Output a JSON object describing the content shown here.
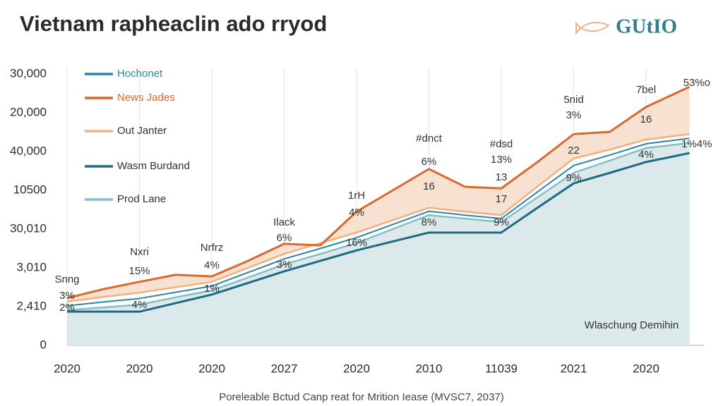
{
  "chart_data": {
    "type": "line",
    "title": "Vietnam rapheaclin ado rryod",
    "logo": "GUtIO",
    "footer": "Poreleable Bctud Canp reat for Mrition Iease (MVSC7, 2037)",
    "x": [
      0,
      0.5,
      1,
      1.5,
      2,
      2.5,
      3,
      3.5,
      4,
      4.5,
      5,
      5.5,
      6,
      6.5,
      7,
      7.5,
      8,
      8.6
    ],
    "xlim": [
      0,
      8.8
    ],
    "xticks": [
      {
        "value": 0,
        "label": "2020"
      },
      {
        "value": 1,
        "label": "2020"
      },
      {
        "value": 2,
        "label": "2020"
      },
      {
        "value": 3,
        "label": "2027"
      },
      {
        "value": 4,
        "label": "2020"
      },
      {
        "value": 5,
        "label": "2010"
      },
      {
        "value": 6,
        "label": "11039"
      },
      {
        "value": 7,
        "label": "2021"
      },
      {
        "value": 8,
        "label": "2020"
      }
    ],
    "ylim": [
      0,
      7
    ],
    "yticks": [
      0,
      {
        "value": 1,
        "label": "2,410"
      },
      {
        "value": 2,
        "label": "3,010"
      },
      {
        "value": 3,
        "label": "30,010"
      },
      {
        "value": 4,
        "label": "10500"
      },
      {
        "value": 5,
        "label": "40,000"
      },
      {
        "value": 6,
        "label": "20,000"
      },
      {
        "value": 7,
        "label": "30,000"
      }
    ],
    "grid": true,
    "legend": "upper left",
    "series": [
      {
        "name": "Hochonet",
        "color": "#2a86a8",
        "values": [
          1.02,
          1.12,
          1.21,
          1.37,
          1.53,
          1.88,
          2.23,
          2.5,
          2.78,
          3.12,
          3.46,
          3.36,
          3.27,
          3.96,
          4.64,
          4.91,
          5.2,
          5.34
        ]
      },
      {
        "name": "News Jades",
        "color": "#d9692e",
        "values": [
          1.22,
          1.45,
          1.64,
          1.82,
          1.78,
          2.18,
          2.62,
          2.58,
          3.45,
          4.0,
          4.55,
          4.09,
          4.05,
          4.73,
          5.45,
          5.51,
          6.15,
          6.67
        ]
      },
      {
        "name": "Out Janter",
        "color": "#f2b07e",
        "values": [
          1.13,
          1.25,
          1.36,
          1.5,
          1.64,
          2.0,
          2.36,
          2.64,
          2.91,
          3.23,
          3.55,
          3.45,
          3.36,
          4.1,
          4.82,
          5.05,
          5.31,
          5.45
        ]
      },
      {
        "name": "Wasm Burdand",
        "color": "#1d6a87",
        "values": [
          0.87,
          0.87,
          0.87,
          1.09,
          1.31,
          1.61,
          1.91,
          2.18,
          2.45,
          2.68,
          2.91,
          2.91,
          2.91,
          3.55,
          4.18,
          4.45,
          4.73,
          4.96
        ]
      },
      {
        "name": "Prod Lane",
        "color": "#86bcc6",
        "values": [
          0.91,
          0.98,
          1.05,
          1.24,
          1.42,
          1.75,
          2.09,
          2.36,
          2.64,
          3.0,
          3.36,
          3.27,
          3.18,
          3.82,
          4.45,
          4.77,
          5.09,
          5.22
        ]
      }
    ],
    "annotations": [
      {
        "text": "Snng",
        "x": 0,
        "y": 1.69
      },
      {
        "text": "3%",
        "x": 0,
        "y": 1.27
      },
      {
        "text": "2%",
        "x": 0,
        "y": 0.96
      },
      {
        "text": "Nxri",
        "x": 1,
        "y": 2.4
      },
      {
        "text": "15%",
        "x": 1,
        "y": 1.91
      },
      {
        "text": "4%",
        "x": 1,
        "y": 1.04
      },
      {
        "text": "Nrfrz",
        "x": 2,
        "y": 2.51
      },
      {
        "text": "4%",
        "x": 2,
        "y": 2.05
      },
      {
        "text": "1%",
        "x": 2,
        "y": 1.45
      },
      {
        "text": "Ilack",
        "x": 3,
        "y": 3.16
      },
      {
        "text": "6%",
        "x": 3,
        "y": 2.76
      },
      {
        "text": "3%",
        "x": 3,
        "y": 2.07
      },
      {
        "text": "1rH",
        "x": 4,
        "y": 3.85
      },
      {
        "text": "4%",
        "x": 4,
        "y": 3.42
      },
      {
        "text": "16%",
        "x": 4,
        "y": 2.64
      },
      {
        "text": "#dnct",
        "x": 5,
        "y": 5.33
      },
      {
        "text": "6%",
        "x": 5,
        "y": 4.73
      },
      {
        "text": "16",
        "x": 5,
        "y": 4.09
      },
      {
        "text": "8%",
        "x": 5,
        "y": 3.16
      },
      {
        "text": "#dsd",
        "x": 6,
        "y": 5.18
      },
      {
        "text": "13%",
        "x": 6,
        "y": 4.78
      },
      {
        "text": "13",
        "x": 6,
        "y": 4.33
      },
      {
        "text": "17",
        "x": 6,
        "y": 3.76
      },
      {
        "text": "9%",
        "x": 6,
        "y": 3.16
      },
      {
        "text": "5nid",
        "x": 7,
        "y": 6.33
      },
      {
        "text": "3%",
        "x": 7,
        "y": 5.93
      },
      {
        "text": "22",
        "x": 7,
        "y": 5.02
      },
      {
        "text": "9%",
        "x": 7,
        "y": 4.31
      },
      {
        "text": "7bel",
        "x": 8,
        "y": 6.58
      },
      {
        "text": "16",
        "x": 8,
        "y": 5.82
      },
      {
        "text": "4%",
        "x": 8,
        "y": 4.91
      },
      {
        "text": "53%o",
        "x": 8.7,
        "y": 6.76
      },
      {
        "text": "1%4%",
        "x": 8.7,
        "y": 5.18
      },
      {
        "text": "Wlaschung Demihin",
        "x": 7.8,
        "y": 0.51
      }
    ]
  }
}
